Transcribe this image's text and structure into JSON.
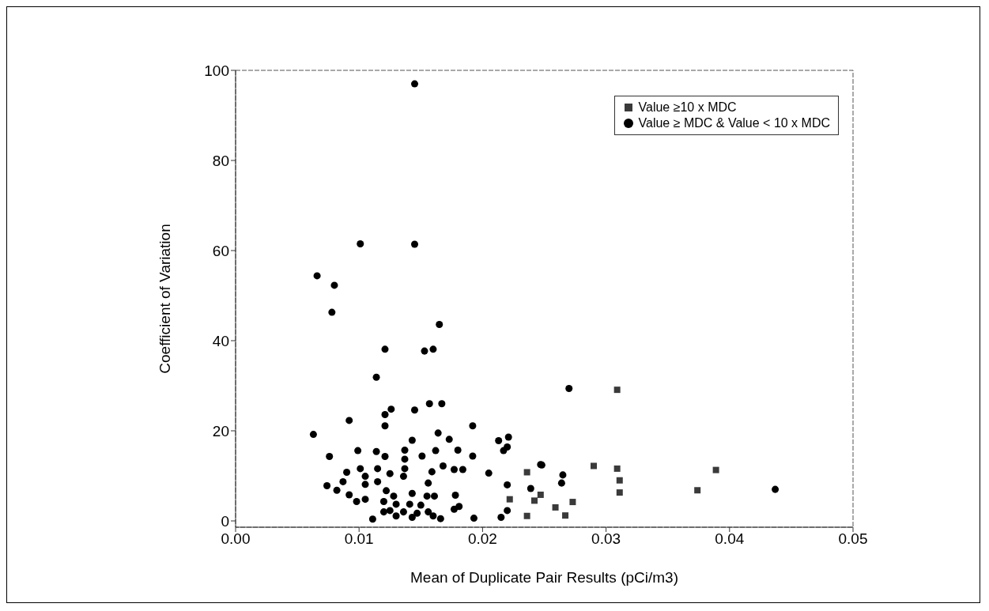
{
  "chart_data": {
    "type": "scatter",
    "xlabel": "Mean of Duplicate Pair Results (pCi/m3)",
    "ylabel": "Coefficient of Variation",
    "xlim": [
      0,
      0.05
    ],
    "xticks": [
      {
        "value": 0,
        "label": "0.00"
      },
      {
        "value": 0.01,
        "label": "0.01"
      },
      {
        "value": 0.02,
        "label": "0.02"
      },
      {
        "value": 0.03,
        "label": "0.03"
      },
      {
        "value": 0.04,
        "label": "0.04"
      },
      {
        "value": 0.05,
        "label": "0.05"
      }
    ],
    "ylim": [
      -1.4,
      100
    ],
    "yticks": [
      0,
      20,
      40,
      60,
      80,
      100
    ],
    "grid": false,
    "legend": "top right",
    "series": [
      {
        "name": "Value ≥10 x MDC",
        "color": "#3a3a3a",
        "marker": "square",
        "x": [
          0.0309,
          0.029,
          0.0309,
          0.0311,
          0.0311,
          0.0389,
          0.0374,
          0.0273,
          0.0259,
          0.0267,
          0.0236,
          0.0222,
          0.0242,
          0.0247,
          0.0236
        ],
        "values": [
          29.1,
          12.2,
          11.6,
          9.0,
          6.3,
          11.3,
          6.8,
          4.2,
          3.0,
          1.2,
          10.8,
          4.8,
          4.5,
          5.8,
          1.1
        ]
      },
      {
        "name": "Value ≥ MDC & Value < 10 x MDC",
        "color": "#000000",
        "marker": "circle",
        "x": [
          0.0145,
          0.0101,
          0.0145,
          0.0066,
          0.008,
          0.0078,
          0.0165,
          0.0121,
          0.0153,
          0.016,
          0.0114,
          0.0092,
          0.0063,
          0.0121,
          0.0126,
          0.0121,
          0.0145,
          0.0157,
          0.0167,
          0.0192,
          0.0164,
          0.0173,
          0.0143,
          0.0213,
          0.0221,
          0.022,
          0.0217,
          0.0099,
          0.0076,
          0.0114,
          0.0137,
          0.0162,
          0.018,
          0.0151,
          0.0192,
          0.0137,
          0.0121,
          0.0247,
          0.0137,
          0.0168,
          0.0177,
          0.0184,
          0.0159,
          0.0205,
          0.0101,
          0.009,
          0.0125,
          0.0136,
          0.0087,
          0.0105,
          0.0115,
          0.0074,
          0.0082,
          0.0105,
          0.0115,
          0.0156,
          0.022,
          0.0239,
          0.0092,
          0.0178,
          0.0122,
          0.0128,
          0.0143,
          0.0155,
          0.0161,
          0.0098,
          0.0105,
          0.012,
          0.013,
          0.0141,
          0.015,
          0.0177,
          0.0181,
          0.0125,
          0.0136,
          0.0147,
          0.0156,
          0.0166,
          0.016,
          0.0111,
          0.0193,
          0.0215,
          0.022,
          0.0143,
          0.013,
          0.012,
          0.027,
          0.0437,
          0.0265,
          0.0264,
          0.0248
        ],
        "values": [
          97.0,
          61.5,
          61.4,
          54.4,
          52.3,
          46.3,
          43.6,
          38.1,
          37.7,
          38.1,
          31.9,
          22.3,
          19.2,
          23.6,
          24.8,
          21.1,
          24.6,
          26.0,
          26.0,
          21.1,
          19.5,
          18.1,
          17.9,
          17.8,
          18.6,
          16.4,
          15.6,
          15.6,
          14.3,
          15.4,
          15.7,
          15.6,
          15.7,
          14.4,
          14.4,
          13.7,
          14.3,
          12.5,
          11.6,
          12.2,
          11.4,
          11.4,
          10.9,
          10.6,
          11.6,
          10.8,
          10.5,
          9.9,
          8.7,
          9.9,
          11.6,
          7.8,
          6.8,
          8.1,
          8.7,
          8.4,
          8.0,
          7.2,
          5.8,
          5.7,
          6.7,
          5.5,
          6.1,
          5.5,
          5.5,
          4.3,
          4.8,
          4.3,
          3.7,
          3.7,
          3.5,
          2.6,
          3.2,
          2.3,
          2.0,
          1.7,
          2.0,
          0.5,
          1.1,
          0.4,
          0.6,
          0.8,
          2.3,
          0.8,
          1.1,
          2.0,
          29.4,
          7.0,
          10.2,
          8.4,
          12.4
        ]
      }
    ]
  }
}
